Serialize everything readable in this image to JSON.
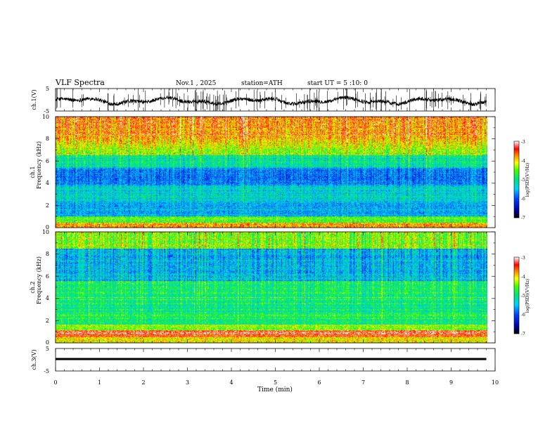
{
  "header": {
    "title": "VLF  Spectra",
    "date": "Nov.1  , 2025",
    "station": "station=ATH",
    "start_ut": "start  UT  =   5  :10: 0"
  },
  "chart_data": [
    {
      "type": "line",
      "name": "ch1-waveform",
      "ylabel": "ch.1(V)",
      "ylim": [
        -5,
        5
      ],
      "yticks": [
        "5",
        "-5"
      ],
      "xlim": [
        0,
        9.8
      ],
      "description_series": "noisy voltage trace around -0.5 V with spikes"
    },
    {
      "type": "heatmap",
      "name": "ch1-spectrogram",
      "ylabel_channel": "ch.1",
      "ylabel": "Frequency  (kHz)",
      "ylim": [
        0,
        10
      ],
      "yticks": [
        "0",
        "2",
        "4",
        "6",
        "8",
        "10"
      ],
      "xlim": [
        0,
        9.8
      ],
      "colorbar_label": "log(PSD)(V²/Hz)",
      "colorbar_ticks": [
        "-3",
        "-4",
        "-5",
        "-6",
        "-7"
      ],
      "colorbar_range": [
        -7,
        -3
      ]
    },
    {
      "type": "heatmap",
      "name": "ch2-spectrogram",
      "ylabel_channel": "ch.2",
      "ylabel": "Frequency  (kHz)",
      "ylim": [
        0,
        10
      ],
      "yticks": [
        "0",
        "2",
        "4",
        "6",
        "8",
        "10"
      ],
      "xlim": [
        0,
        9.8
      ],
      "colorbar_label": "log(PSD)(V²/Hz)",
      "colorbar_ticks": [
        "-3",
        "-4",
        "-5",
        "-6",
        "-7"
      ],
      "colorbar_range": [
        -7,
        -3
      ]
    },
    {
      "type": "line",
      "name": "ch3-waveform",
      "ylabel": "ch.3(V)",
      "ylim": [
        -5,
        5
      ],
      "yticks": [
        "5",
        "-5"
      ],
      "xlim": [
        0,
        9.8
      ],
      "description_series": "flat trace near -1.5 V"
    }
  ],
  "xaxis": {
    "label": "Time  (min)",
    "ticks": [
      "0",
      "1",
      "2",
      "3",
      "4",
      "5",
      "6",
      "7",
      "8",
      "9",
      "10"
    ],
    "range": [
      0,
      10
    ]
  }
}
